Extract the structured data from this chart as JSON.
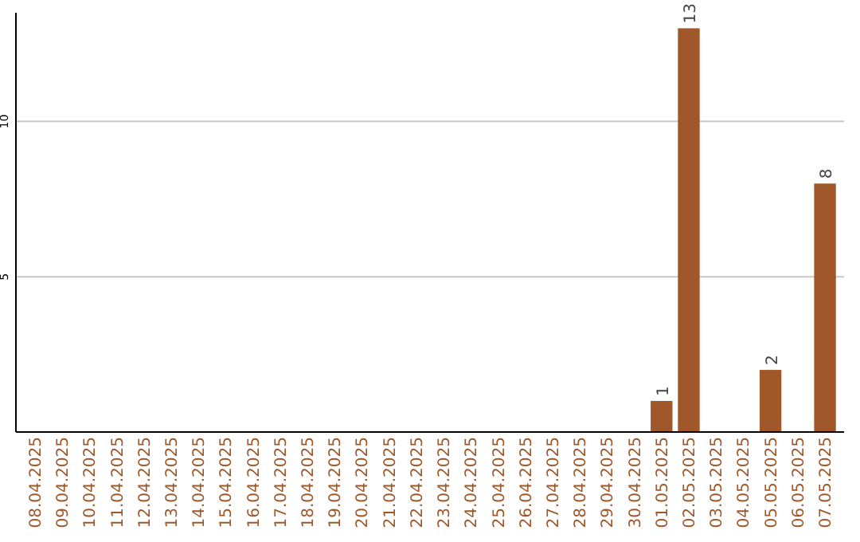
{
  "chart_data": {
    "type": "bar",
    "categories": [
      "08.04.2025",
      "09.04.2025",
      "10.04.2025",
      "11.04.2025",
      "12.04.2025",
      "13.04.2025",
      "14.04.2025",
      "15.04.2025",
      "16.04.2025",
      "17.04.2025",
      "18.04.2025",
      "19.04.2025",
      "20.04.2025",
      "21.04.2025",
      "22.04.2025",
      "23.04.2025",
      "24.04.2025",
      "25.04.2025",
      "26.04.2025",
      "27.04.2025",
      "28.04.2025",
      "29.04.2025",
      "30.04.2025",
      "01.05.2025",
      "02.05.2025",
      "03.05.2025",
      "04.05.2025",
      "05.05.2025",
      "06.05.2025",
      "07.05.2025"
    ],
    "values": [
      0,
      0,
      0,
      0,
      0,
      0,
      0,
      0,
      0,
      0,
      0,
      0,
      0,
      0,
      0,
      0,
      0,
      0,
      0,
      0,
      0,
      0,
      0,
      1,
      13,
      0,
      0,
      2,
      0,
      8
    ],
    "value_labels": [
      null,
      null,
      null,
      null,
      null,
      null,
      null,
      null,
      null,
      null,
      null,
      null,
      null,
      null,
      null,
      null,
      null,
      null,
      null,
      null,
      null,
      null,
      null,
      "1",
      "13",
      null,
      null,
      "2",
      null,
      "8"
    ],
    "color": "#a0582a",
    "ylim": [
      0,
      13.5
    ],
    "yticks": [
      5,
      10
    ],
    "grid": "y"
  }
}
